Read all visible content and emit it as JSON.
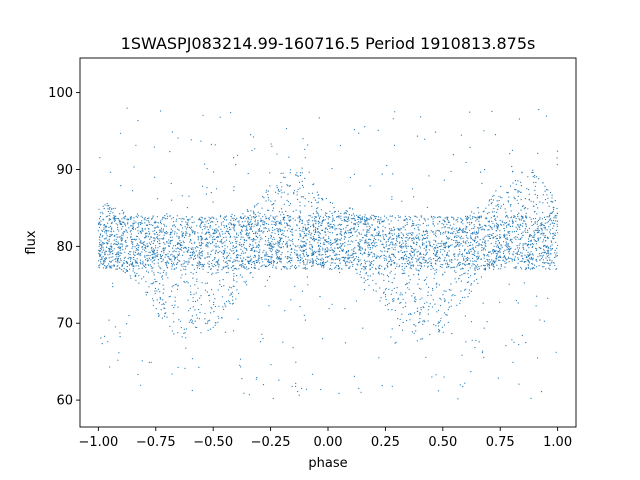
{
  "chart_data": {
    "type": "scatter",
    "title": "1SWASPJ083214.99-160716.5 Period 1910813.875s",
    "xlabel": "phase",
    "ylabel": "flux",
    "xlim": [
      -1.08,
      1.08
    ],
    "ylim": [
      56.5,
      104.5
    ],
    "xticks": [
      -1.0,
      -0.75,
      -0.5,
      -0.25,
      0.0,
      0.25,
      0.5,
      0.75,
      1.0
    ],
    "xtick_labels": [
      "−1.00",
      "−0.75",
      "−0.50",
      "−0.25",
      "0.00",
      "0.25",
      "0.50",
      "0.75",
      "1.00"
    ],
    "yticks": [
      60,
      70,
      80,
      90,
      100
    ],
    "ytick_labels": [
      "60",
      "70",
      "80",
      "90",
      "100"
    ],
    "grid": false,
    "marker_color": "#1f77b4",
    "series": [
      {
        "phase_profile": {
          "phase": [
            -1.0,
            -0.9,
            -0.8,
            -0.7,
            -0.6,
            -0.5,
            -0.4,
            -0.3,
            -0.2,
            -0.1,
            0.0,
            0.1,
            0.2,
            0.3,
            0.4,
            0.5,
            0.6,
            0.7,
            0.8,
            0.9,
            1.0
          ],
          "flux_upper": [
            86,
            85,
            84,
            83,
            82,
            82,
            84,
            86,
            90,
            90,
            86,
            85,
            84,
            83,
            82,
            82,
            84,
            86,
            90,
            90,
            86
          ],
          "flux_lower": [
            77,
            77,
            74,
            69,
            67,
            69,
            73,
            77,
            78,
            78,
            77,
            77,
            74,
            69,
            67,
            69,
            73,
            77,
            78,
            78,
            77
          ]
        }
      }
    ]
  }
}
